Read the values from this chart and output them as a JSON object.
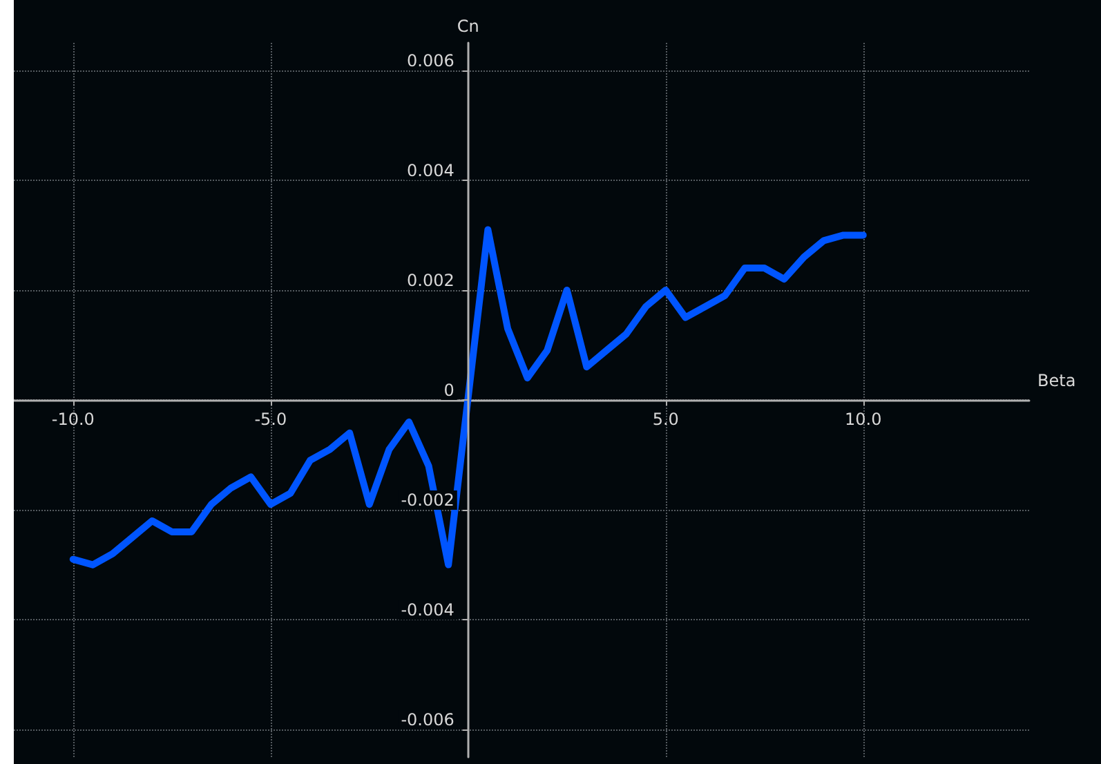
{
  "chart_data": {
    "type": "line",
    "xlabel": "Beta",
    "ylabel": "Cn",
    "x": [
      -10,
      -9.5,
      -9,
      -8.5,
      -8,
      -7.5,
      -7,
      -6.5,
      -6,
      -5.5,
      -5,
      -4.5,
      -4,
      -3.5,
      -3,
      -2.5,
      -2,
      -1.5,
      -1,
      -0.5,
      0.5,
      1,
      1.5,
      2,
      2.5,
      3,
      3.5,
      4,
      4.5,
      5,
      5.5,
      6,
      6.5,
      7,
      7.5,
      8,
      8.5,
      9,
      9.5,
      10
    ],
    "series": [
      {
        "color": "#0055ff",
        "values": [
          -0.0029,
          -0.003,
          -0.0028,
          -0.0025,
          -0.0022,
          -0.0024,
          -0.0024,
          -0.0019,
          -0.0016,
          -0.0014,
          -0.0019,
          -0.0017,
          -0.0011,
          -0.0009,
          -0.0006,
          -0.0019,
          -0.0009,
          -0.0004,
          -0.0012,
          -0.003,
          0.0031,
          0.0013,
          0.0004,
          0.0009,
          0.002,
          0.0006,
          0.0009,
          0.0012,
          0.0017,
          0.002,
          0.0015,
          0.0017,
          0.0019,
          0.0024,
          0.0024,
          0.0022,
          0.0026,
          0.0029,
          0.003,
          0.003
        ]
      }
    ],
    "xlim": [
      -11.5,
      14.2
    ],
    "ylim": [
      -0.0065,
      0.0065
    ],
    "xticks": [
      {
        "value": -10,
        "label": "-10.0"
      },
      {
        "value": -5,
        "label": "-5.0"
      },
      {
        "value": 5,
        "label": "5.0"
      },
      {
        "value": 10,
        "label": "10.0"
      }
    ],
    "yticks": [
      -0.006,
      -0.004,
      -0.002,
      0,
      0.002,
      0.004,
      0.006
    ],
    "grid": true,
    "marker": "none",
    "line_style": "solid"
  }
}
